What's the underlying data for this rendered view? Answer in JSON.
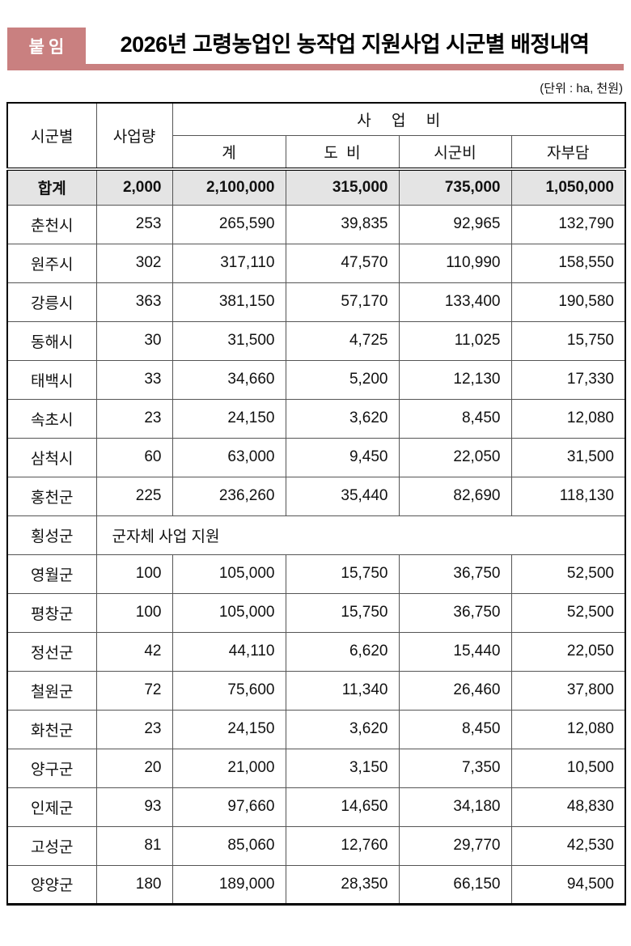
{
  "page": {
    "badge": "붙임",
    "title": "2026년 고령농업인 농작업 지원사업 시군별 배정내역",
    "unit_note": "(단위 : ha, 천원)",
    "accent_color": "#c98080",
    "summary_row_bg": "#e4e4e4"
  },
  "table": {
    "header": {
      "col_region": "시군별",
      "col_volume": "사업량",
      "col_cost_group": "사 업 비",
      "sub_total": "계",
      "sub_province": "도 비",
      "sub_city": "시군비",
      "sub_self": "자부담"
    },
    "summary_row": {
      "region": "합계",
      "volume": "2,000",
      "total": "2,100,000",
      "province": "315,000",
      "city": "735,000",
      "self": "1,050,000"
    },
    "rows": [
      {
        "region": "춘천시",
        "volume": "253",
        "total": "265,590",
        "province": "39,835",
        "city": "92,965",
        "self": "132,790"
      },
      {
        "region": "원주시",
        "volume": "302",
        "total": "317,110",
        "province": "47,570",
        "city": "110,990",
        "self": "158,550"
      },
      {
        "region": "강릉시",
        "volume": "363",
        "total": "381,150",
        "province": "57,170",
        "city": "133,400",
        "self": "190,580"
      },
      {
        "region": "동해시",
        "volume": "30",
        "total": "31,500",
        "province": "4,725",
        "city": "11,025",
        "self": "15,750"
      },
      {
        "region": "태백시",
        "volume": "33",
        "total": "34,660",
        "province": "5,200",
        "city": "12,130",
        "self": "17,330"
      },
      {
        "region": "속초시",
        "volume": "23",
        "total": "24,150",
        "province": "3,620",
        "city": "8,450",
        "self": "12,080"
      },
      {
        "region": "삼척시",
        "volume": "60",
        "total": "63,000",
        "province": "9,450",
        "city": "22,050",
        "self": "31,500"
      },
      {
        "region": "홍천군",
        "volume": "225",
        "total": "236,260",
        "province": "35,440",
        "city": "82,690",
        "self": "118,130"
      },
      {
        "region": "횡성군",
        "merged_note": "군자체 사업 지원"
      },
      {
        "region": "영월군",
        "volume": "100",
        "total": "105,000",
        "province": "15,750",
        "city": "36,750",
        "self": "52,500"
      },
      {
        "region": "평창군",
        "volume": "100",
        "total": "105,000",
        "province": "15,750",
        "city": "36,750",
        "self": "52,500"
      },
      {
        "region": "정선군",
        "volume": "42",
        "total": "44,110",
        "province": "6,620",
        "city": "15,440",
        "self": "22,050"
      },
      {
        "region": "철원군",
        "volume": "72",
        "total": "75,600",
        "province": "11,340",
        "city": "26,460",
        "self": "37,800"
      },
      {
        "region": "화천군",
        "volume": "23",
        "total": "24,150",
        "province": "3,620",
        "city": "8,450",
        "self": "12,080"
      },
      {
        "region": "양구군",
        "volume": "20",
        "total": "21,000",
        "province": "3,150",
        "city": "7,350",
        "self": "10,500"
      },
      {
        "region": "인제군",
        "volume": "93",
        "total": "97,660",
        "province": "14,650",
        "city": "34,180",
        "self": "48,830"
      },
      {
        "region": "고성군",
        "volume": "81",
        "total": "85,060",
        "province": "12,760",
        "city": "29,770",
        "self": "42,530"
      },
      {
        "region": "양양군",
        "volume": "180",
        "total": "189,000",
        "province": "28,350",
        "city": "66,150",
        "self": "94,500"
      }
    ]
  }
}
